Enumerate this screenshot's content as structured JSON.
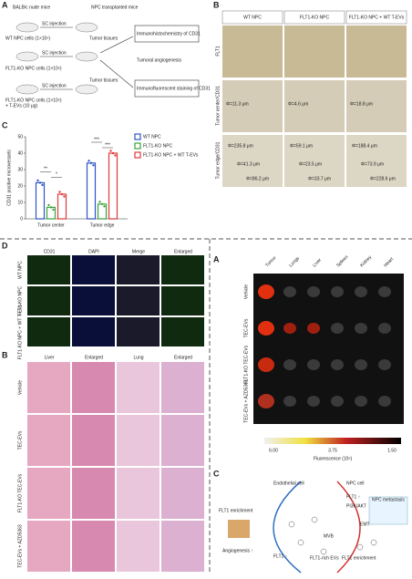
{
  "schematic": {
    "letter": "A",
    "mouse": "BALB/c nude mice",
    "transplanted": "NPC transplanted mice",
    "injections": [
      "SC injection",
      "SC injection",
      "SC injection"
    ],
    "groups": [
      "WT NPC cells (1×10⁶)",
      "FLT1-KO NPC cells (1×10⁶)",
      "FLT1-KO NPC cells (1×10⁶)",
      "+ T-EVs (10 μg)"
    ],
    "tissues": [
      "Tumor tissues",
      "Tumor tissues"
    ],
    "ihc": "Immunohistochemistry of CD31",
    "outcome": "Tumoral angiogenesis",
    "ifs": "Immunofluorescent staining of CD31"
  },
  "ihc_panel": {
    "letter": "B",
    "columns": [
      "WT NPC",
      "FLT1-KO NPC",
      "FLT1-KO NPC + WT T-EVs"
    ],
    "rows": [
      "FLT1",
      "Tumor center/CD31",
      "Tumor edge/CD31"
    ],
    "center_labels": [
      "Φ=11.3 μm",
      "Φ=4.6 μm",
      "Φ=18.8 μm"
    ],
    "edge_labels": [
      [
        "Φ=235.8 μm",
        "Φ=41.3 μm",
        "Φ=86.2 μm"
      ],
      [
        "Φ=59.1 μm",
        "Φ=23.5 μm",
        "Φ=33.7 μm"
      ],
      [
        "Φ=188.4 μm",
        "Φ=73.9 μm",
        "Φ=228.6 μm"
      ]
    ]
  },
  "chart_data": {
    "type": "bar",
    "letter": "C",
    "y_label": "CD31 positive microvessels",
    "categories": [
      "Tumor center",
      "Tumor edge"
    ],
    "series": [
      {
        "name": "WT NPC",
        "color": "#2f55c8",
        "values": [
          22,
          34
        ]
      },
      {
        "name": "FLT1-KO NPC",
        "color": "#3aa33a",
        "values": [
          7,
          9
        ]
      },
      {
        "name": "FLT1-KO NPC + WT T-EVs",
        "color": "#e03a3a",
        "values": [
          15,
          40
        ]
      }
    ],
    "ylim": [
      0,
      50
    ],
    "yticks": [
      0,
      10,
      20,
      30,
      40,
      50
    ],
    "significance": [
      "**",
      "*",
      "***",
      "***"
    ]
  },
  "if_panel": {
    "letter": "D",
    "columns": [
      "CD31",
      "DAPI",
      "Merge",
      "Enlarged"
    ],
    "rows": [
      "WT NPC",
      "FLT1-KO NPC",
      "FLT1-KO NPC + WT T-EVs"
    ]
  },
  "he_panel": {
    "letter": "B",
    "columns": [
      "Liver",
      "Enlarged",
      "Lung",
      "Enlarged"
    ],
    "rows": [
      "Vehicle",
      "TEC-EVs",
      "FLT1-KO TEC-EVs",
      "TEC-EVs + AZD5363"
    ]
  },
  "imaging_panel": {
    "letter": "A",
    "columns": [
      "Tumor",
      "Lungs",
      "Liver",
      "Spleen",
      "Kidney",
      "Heart"
    ],
    "rows": [
      "Vehicle",
      "TEC-EVs",
      "FLT1-KO TEC-EVs",
      "TEC-EVs + AZD5363"
    ],
    "scale_labels": [
      "6.00",
      "3.75",
      "1.50"
    ],
    "scale_title": "Fluorescence (10⁶)"
  },
  "model_panel": {
    "letter": "C",
    "endothelial": "Endothelial cell",
    "npc": "NPC cell",
    "labels": [
      "FLT1 enrichment",
      "Angiogenesis ↑",
      "FLT1 ↑",
      "PI3K/AKT",
      "EMT",
      "NPC metastasis",
      "MVB",
      "FLT1-rich EVs",
      "FLT1 enrichment",
      "FLT1 ↑"
    ]
  }
}
